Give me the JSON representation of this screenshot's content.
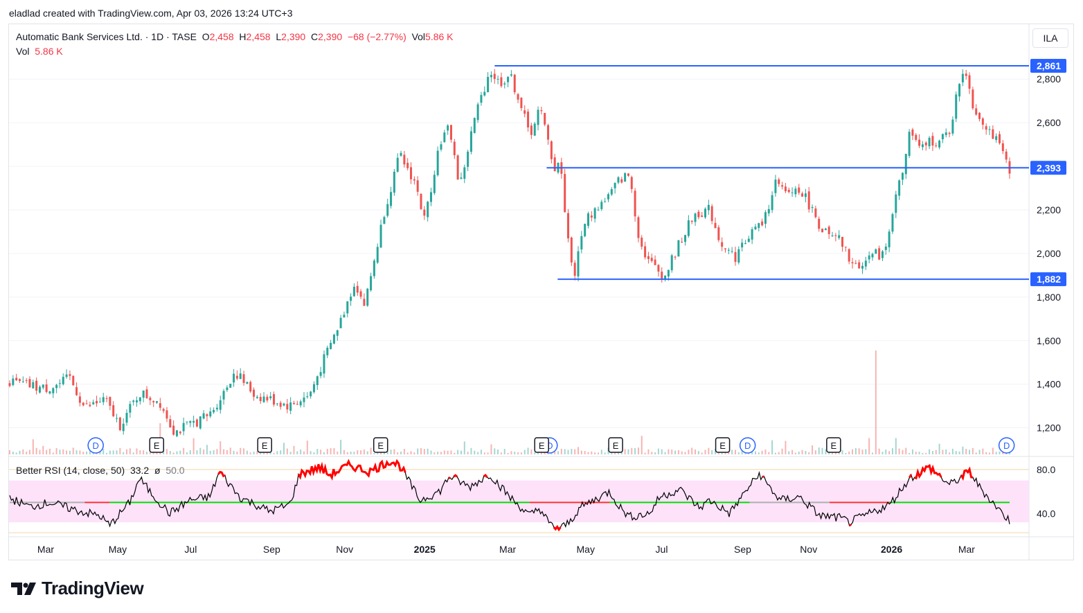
{
  "credit": "eladlad created with TradingView.com, Apr 03, 2026 13:24 UTC+3",
  "currency": "ILA",
  "legend": {
    "symbol": "Automatic Bank Services Ltd. · 1D · TASE",
    "o_label": "O",
    "o_value": "2,458",
    "h_label": "H",
    "h_value": "2,458",
    "l_label": "L",
    "l_value": "2,390",
    "c_label": "C",
    "c_value": "2,390",
    "change": "−68 (−2.77%)",
    "vol_label": "Vol",
    "vol_value": "5.86 K"
  },
  "vol_legend": {
    "label": "Vol",
    "value": "5.86 K"
  },
  "rsi_legend": {
    "name": "Better RSI (14, close, 50)",
    "value": "33.2",
    "sym": "ø",
    "mid": "50.0"
  },
  "brand": "TradingView",
  "colors": {
    "up": "#26a69a",
    "down": "#ef5350",
    "level": "#2962ff",
    "rsi_line": "#000000",
    "rsi_hot": "#ff0000",
    "rsi_band": "#fde2fa",
    "mid_up": "#00e000",
    "mid_down": "#ff3030",
    "mid_neutral": "#b0b0b0"
  },
  "chart_data": {
    "type": "candlestick",
    "price_axis": {
      "ticks": [
        "2,800",
        "2,600",
        "2,400",
        "2,200",
        "2,000",
        "1,800",
        "1,600",
        "1,400",
        "1,200"
      ],
      "ylim": [
        1075,
        2950
      ]
    },
    "time_axis": {
      "ticks": [
        "Mar",
        "May",
        "Jul",
        "Sep",
        "Nov",
        "2025",
        "Mar",
        "May",
        "Jul",
        "Sep",
        "Nov",
        "2026",
        "Mar"
      ],
      "bold": [
        "2025",
        "2026"
      ]
    },
    "levels": [
      {
        "label": "2,861",
        "value": 2861
      },
      {
        "label": "2,393",
        "value": 2393
      },
      {
        "label": "1,882",
        "value": 1882
      }
    ],
    "close_path": [
      {
        "t": 0,
        "v": 1410
      },
      {
        "t": 0.035,
        "v": 1380
      },
      {
        "t": 0.05,
        "v": 1400
      },
      {
        "t": 0.06,
        "v": 1430
      },
      {
        "t": 0.075,
        "v": 1290
      },
      {
        "t": 0.095,
        "v": 1330
      },
      {
        "t": 0.11,
        "v": 1210
      },
      {
        "t": 0.13,
        "v": 1360
      },
      {
        "t": 0.15,
        "v": 1320
      },
      {
        "t": 0.165,
        "v": 1180
      },
      {
        "t": 0.2,
        "v": 1260
      },
      {
        "t": 0.215,
        "v": 1370
      },
      {
        "t": 0.225,
        "v": 1460
      },
      {
        "t": 0.245,
        "v": 1350
      },
      {
        "t": 0.26,
        "v": 1330
      },
      {
        "t": 0.28,
        "v": 1300
      },
      {
        "t": 0.3,
        "v": 1350
      },
      {
        "t": 0.315,
        "v": 1520
      },
      {
        "t": 0.33,
        "v": 1680
      },
      {
        "t": 0.345,
        "v": 1870
      },
      {
        "t": 0.355,
        "v": 1760
      },
      {
        "t": 0.375,
        "v": 2200
      },
      {
        "t": 0.39,
        "v": 2450
      },
      {
        "t": 0.405,
        "v": 2330
      },
      {
        "t": 0.415,
        "v": 2150
      },
      {
        "t": 0.43,
        "v": 2510
      },
      {
        "t": 0.44,
        "v": 2580
      },
      {
        "t": 0.45,
        "v": 2300
      },
      {
        "t": 0.465,
        "v": 2620
      },
      {
        "t": 0.48,
        "v": 2840
      },
      {
        "t": 0.49,
        "v": 2780
      },
      {
        "t": 0.5,
        "v": 2820
      },
      {
        "t": 0.51,
        "v": 2700
      },
      {
        "t": 0.52,
        "v": 2540
      },
      {
        "t": 0.53,
        "v": 2670
      },
      {
        "t": 0.545,
        "v": 2390
      },
      {
        "t": 0.55,
        "v": 2430
      },
      {
        "t": 0.56,
        "v": 2000
      },
      {
        "t": 0.565,
        "v": 1905
      },
      {
        "t": 0.575,
        "v": 2150
      },
      {
        "t": 0.6,
        "v": 2270
      },
      {
        "t": 0.61,
        "v": 2340
      },
      {
        "t": 0.62,
        "v": 2360
      },
      {
        "t": 0.63,
        "v": 2050
      },
      {
        "t": 0.64,
        "v": 1960
      },
      {
        "t": 0.655,
        "v": 1895
      },
      {
        "t": 0.67,
        "v": 2050
      },
      {
        "t": 0.685,
        "v": 2180
      },
      {
        "t": 0.7,
        "v": 2200
      },
      {
        "t": 0.71,
        "v": 2060
      },
      {
        "t": 0.725,
        "v": 1980
      },
      {
        "t": 0.74,
        "v": 2090
      },
      {
        "t": 0.755,
        "v": 2150
      },
      {
        "t": 0.765,
        "v": 2330
      },
      {
        "t": 0.775,
        "v": 2270
      },
      {
        "t": 0.79,
        "v": 2300
      },
      {
        "t": 0.8,
        "v": 2220
      },
      {
        "t": 0.81,
        "v": 2130
      },
      {
        "t": 0.82,
        "v": 2070
      },
      {
        "t": 0.83,
        "v": 2060
      },
      {
        "t": 0.845,
        "v": 1930
      },
      {
        "t": 0.86,
        "v": 1990
      },
      {
        "t": 0.875,
        "v": 2000
      },
      {
        "t": 0.885,
        "v": 2250
      },
      {
        "t": 0.895,
        "v": 2400
      },
      {
        "t": 0.9,
        "v": 2570
      },
      {
        "t": 0.91,
        "v": 2470
      },
      {
        "t": 0.92,
        "v": 2520
      },
      {
        "t": 0.93,
        "v": 2510
      },
      {
        "t": 0.94,
        "v": 2560
      },
      {
        "t": 0.95,
        "v": 2790
      },
      {
        "t": 0.955,
        "v": 2860
      },
      {
        "t": 0.965,
        "v": 2650
      },
      {
        "t": 0.975,
        "v": 2600
      },
      {
        "t": 0.985,
        "v": 2530
      },
      {
        "t": 1.0,
        "v": 2390
      }
    ],
    "volume_spikes": [
      {
        "t": 0.151,
        "v": 9
      },
      {
        "t": 0.865,
        "v": 30
      }
    ],
    "events_D": [
      0.086,
      0.54,
      0.738,
      0.997
    ],
    "events_E": [
      0.147,
      0.255,
      0.371,
      0.532,
      0.606,
      0.713,
      0.824
    ],
    "rsi": {
      "axis_labels": [
        "80.0",
        "40.0"
      ],
      "range": [
        20,
        90
      ],
      "band": [
        32,
        70
      ],
      "upper": 80,
      "lower": 30,
      "mid": 50,
      "path": [
        {
          "t": 0,
          "v": 54
        },
        {
          "t": 0.02,
          "v": 46
        },
        {
          "t": 0.04,
          "v": 50
        },
        {
          "t": 0.07,
          "v": 42
        },
        {
          "t": 0.09,
          "v": 38
        },
        {
          "t": 0.1,
          "v": 29
        },
        {
          "t": 0.12,
          "v": 50
        },
        {
          "t": 0.13,
          "v": 72
        },
        {
          "t": 0.14,
          "v": 60
        },
        {
          "t": 0.16,
          "v": 40
        },
        {
          "t": 0.18,
          "v": 52
        },
        {
          "t": 0.2,
          "v": 55
        },
        {
          "t": 0.21,
          "v": 78
        },
        {
          "t": 0.23,
          "v": 55
        },
        {
          "t": 0.26,
          "v": 42
        },
        {
          "t": 0.28,
          "v": 48
        },
        {
          "t": 0.29,
          "v": 76
        },
        {
          "t": 0.31,
          "v": 82
        },
        {
          "t": 0.32,
          "v": 75
        },
        {
          "t": 0.34,
          "v": 84
        },
        {
          "t": 0.36,
          "v": 78
        },
        {
          "t": 0.38,
          "v": 88
        },
        {
          "t": 0.39,
          "v": 84
        },
        {
          "t": 0.41,
          "v": 52
        },
        {
          "t": 0.43,
          "v": 60
        },
        {
          "t": 0.44,
          "v": 74
        },
        {
          "t": 0.46,
          "v": 64
        },
        {
          "t": 0.48,
          "v": 76
        },
        {
          "t": 0.5,
          "v": 55
        },
        {
          "t": 0.52,
          "v": 38
        },
        {
          "t": 0.53,
          "v": 45
        },
        {
          "t": 0.54,
          "v": 30
        },
        {
          "t": 0.55,
          "v": 26
        },
        {
          "t": 0.56,
          "v": 32
        },
        {
          "t": 0.57,
          "v": 45
        },
        {
          "t": 0.59,
          "v": 55
        },
        {
          "t": 0.6,
          "v": 60
        },
        {
          "t": 0.61,
          "v": 46
        },
        {
          "t": 0.62,
          "v": 37
        },
        {
          "t": 0.64,
          "v": 40
        },
        {
          "t": 0.65,
          "v": 55
        },
        {
          "t": 0.67,
          "v": 62
        },
        {
          "t": 0.69,
          "v": 45
        },
        {
          "t": 0.7,
          "v": 52
        },
        {
          "t": 0.72,
          "v": 40
        },
        {
          "t": 0.74,
          "v": 65
        },
        {
          "t": 0.75,
          "v": 76
        },
        {
          "t": 0.77,
          "v": 52
        },
        {
          "t": 0.79,
          "v": 55
        },
        {
          "t": 0.81,
          "v": 38
        },
        {
          "t": 0.83,
          "v": 36
        },
        {
          "t": 0.84,
          "v": 32
        },
        {
          "t": 0.86,
          "v": 40
        },
        {
          "t": 0.88,
          "v": 48
        },
        {
          "t": 0.9,
          "v": 72
        },
        {
          "t": 0.92,
          "v": 82
        },
        {
          "t": 0.94,
          "v": 66
        },
        {
          "t": 0.96,
          "v": 78
        },
        {
          "t": 0.97,
          "v": 64
        },
        {
          "t": 0.985,
          "v": 48
        },
        {
          "t": 1.0,
          "v": 33
        }
      ]
    }
  }
}
